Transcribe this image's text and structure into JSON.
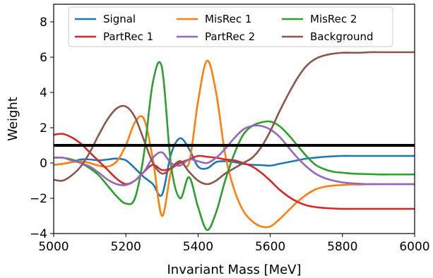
{
  "chart_data": {
    "type": "line",
    "xlabel": "Invariant Mass [MeV]",
    "ylabel": "Weight",
    "xlim": [
      5000,
      6000
    ],
    "ylim": [
      -4,
      9
    ],
    "x_ticks": [
      "5000",
      "5200",
      "5400",
      "5600",
      "5800",
      "6000"
    ],
    "y_ticks": [
      "−4",
      "−2",
      "0",
      "2",
      "4",
      "6",
      "8"
    ],
    "grid": false,
    "legend_placement": "top-center",
    "legend_columns": 3,
    "reference_line": {
      "y": 1.0,
      "color": "#000000"
    },
    "x": [
      5000,
      5025,
      5050,
      5075,
      5100,
      5125,
      5150,
      5175,
      5200,
      5225,
      5250,
      5275,
      5300,
      5325,
      5350,
      5375,
      5400,
      5425,
      5450,
      5475,
      5500,
      5525,
      5550,
      5575,
      5600,
      5625,
      5650,
      5675,
      5700,
      5725,
      5750,
      5775,
      5800,
      5825,
      5850,
      5875,
      5900,
      5925,
      5950,
      5975,
      6000
    ],
    "series": [
      {
        "name": "Signal",
        "color": "#1f77b4",
        "values": [
          -0.1,
          -0.05,
          0.05,
          0.2,
          0.2,
          0.15,
          0.2,
          0.25,
          0.15,
          -0.3,
          -0.8,
          -1.2,
          -1.8,
          0.5,
          1.4,
          0.8,
          -0.2,
          -0.3,
          0.05,
          0.1,
          0.05,
          -0.05,
          -0.1,
          -0.12,
          -0.15,
          -0.05,
          0.05,
          0.15,
          0.25,
          0.3,
          0.35,
          0.38,
          0.4,
          0.4,
          0.4,
          0.4,
          0.4,
          0.4,
          0.4,
          0.4,
          0.4
        ]
      },
      {
        "name": "MisRec 1",
        "color": "#ff7f0e",
        "values": [
          -0.1,
          -0.05,
          0.05,
          0.1,
          0.0,
          -0.15,
          -0.2,
          0.1,
          1.0,
          2.3,
          2.5,
          0.2,
          -3.0,
          -0.5,
          0.1,
          0.0,
          3.5,
          5.8,
          4.0,
          0.5,
          -1.5,
          -2.7,
          -3.3,
          -3.6,
          -3.6,
          -3.2,
          -2.7,
          -2.2,
          -1.8,
          -1.5,
          -1.35,
          -1.28,
          -1.25,
          -1.22,
          -1.22,
          -1.2,
          -1.2,
          -1.2,
          -1.2,
          -1.2,
          -1.2
        ]
      },
      {
        "name": "MisRec 2",
        "color": "#2ca02c",
        "values": [
          0.3,
          0.3,
          0.2,
          0.0,
          -0.3,
          -0.7,
          -1.3,
          -1.9,
          -2.3,
          -2.0,
          0.5,
          4.6,
          5.4,
          -0.1,
          -2.0,
          -0.8,
          -2.5,
          -3.8,
          -2.8,
          -1.0,
          0.5,
          1.6,
          2.1,
          2.3,
          2.35,
          2.1,
          1.6,
          1.0,
          0.4,
          -0.1,
          -0.35,
          -0.5,
          -0.55,
          -0.6,
          -0.62,
          -0.63,
          -0.65,
          -0.65,
          -0.65,
          -0.65,
          -0.65
        ]
      },
      {
        "name": "PartRec 1",
        "color": "#d62728",
        "values": [
          1.6,
          1.65,
          1.45,
          1.1,
          0.6,
          0.1,
          -0.4,
          -0.9,
          -1.2,
          -1.0,
          -0.5,
          -0.1,
          -0.4,
          -0.3,
          0.0,
          0.2,
          0.4,
          0.35,
          0.3,
          0.2,
          0.15,
          0.0,
          -0.2,
          -0.55,
          -1.0,
          -1.5,
          -1.9,
          -2.2,
          -2.4,
          -2.5,
          -2.55,
          -2.58,
          -2.6,
          -2.6,
          -2.6,
          -2.6,
          -2.6,
          -2.6,
          -2.6,
          -2.6,
          -2.6
        ]
      },
      {
        "name": "PartRec 2",
        "color": "#9467bd",
        "values": [
          0.3,
          0.3,
          0.15,
          0.0,
          -0.2,
          -0.55,
          -0.95,
          -1.2,
          -1.25,
          -1.0,
          -0.5,
          0.3,
          0.6,
          0.0,
          -0.15,
          0.2,
          0.1,
          0.0,
          0.3,
          0.8,
          1.4,
          1.9,
          2.1,
          2.1,
          1.9,
          1.5,
          0.9,
          0.3,
          -0.2,
          -0.6,
          -0.85,
          -1.0,
          -1.1,
          -1.15,
          -1.18,
          -1.2,
          -1.2,
          -1.2,
          -1.2,
          -1.2,
          -1.2
        ]
      },
      {
        "name": "Background",
        "color": "#8c564b",
        "values": [
          -0.95,
          -1.0,
          -0.7,
          -0.2,
          0.6,
          1.6,
          2.5,
          3.1,
          3.2,
          2.6,
          1.3,
          0.0,
          -0.6,
          -0.3,
          0.1,
          -0.5,
          -1.0,
          -1.2,
          -1.0,
          -0.6,
          -0.3,
          0.0,
          0.3,
          0.9,
          1.8,
          2.9,
          3.9,
          4.8,
          5.5,
          5.9,
          6.1,
          6.2,
          6.25,
          6.25,
          6.25,
          6.28,
          6.28,
          6.28,
          6.28,
          6.28,
          6.28
        ]
      }
    ]
  }
}
